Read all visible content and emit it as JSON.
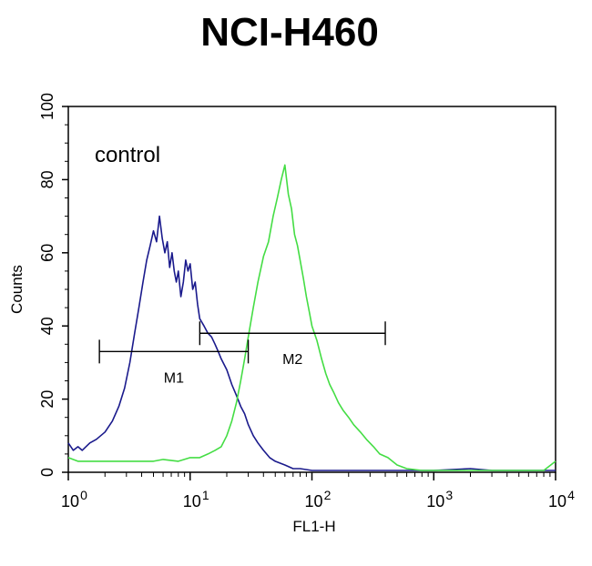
{
  "chart_data": {
    "type": "line",
    "title": "NCI-H460",
    "xlabel": "FL1-H",
    "ylabel": "Counts",
    "x_scale": "log",
    "xlim": [
      1,
      10000
    ],
    "ylim": [
      0,
      100
    ],
    "y_ticks": [
      "0",
      "20",
      "40",
      "60",
      "80",
      "100"
    ],
    "x_ticks": [
      {
        "base": "10",
        "exp": "0"
      },
      {
        "base": "10",
        "exp": "1"
      },
      {
        "base": "10",
        "exp": "2"
      },
      {
        "base": "10",
        "exp": "3"
      },
      {
        "base": "10",
        "exp": "4"
      }
    ],
    "annotation": "control",
    "gates": [
      {
        "label": "M1",
        "x_start": 1.8,
        "x_end": 30,
        "y": 33
      },
      {
        "label": "M2",
        "x_start": 12,
        "x_end": 400,
        "y": 38
      }
    ],
    "series": [
      {
        "color": "#1a1a8c",
        "points": [
          [
            1.0,
            8
          ],
          [
            1.1,
            6
          ],
          [
            1.2,
            7
          ],
          [
            1.3,
            6
          ],
          [
            1.5,
            8
          ],
          [
            1.7,
            9
          ],
          [
            2.0,
            11
          ],
          [
            2.3,
            14
          ],
          [
            2.6,
            18
          ],
          [
            2.9,
            23
          ],
          [
            3.2,
            30
          ],
          [
            3.5,
            38
          ],
          [
            3.8,
            45
          ],
          [
            4.1,
            52
          ],
          [
            4.4,
            58
          ],
          [
            4.7,
            62
          ],
          [
            5.0,
            66
          ],
          [
            5.3,
            63
          ],
          [
            5.6,
            70
          ],
          [
            5.9,
            64
          ],
          [
            6.2,
            60
          ],
          [
            6.5,
            63
          ],
          [
            6.8,
            56
          ],
          [
            7.1,
            60
          ],
          [
            7.4,
            55
          ],
          [
            7.7,
            52
          ],
          [
            8.0,
            55
          ],
          [
            8.4,
            48
          ],
          [
            8.8,
            52
          ],
          [
            9.2,
            58
          ],
          [
            9.6,
            55
          ],
          [
            10,
            57
          ],
          [
            10.5,
            50
          ],
          [
            11,
            52
          ],
          [
            11.5,
            46
          ],
          [
            12,
            42
          ],
          [
            13,
            40
          ],
          [
            14,
            38
          ],
          [
            15,
            37
          ],
          [
            16,
            35
          ],
          [
            17,
            33
          ],
          [
            18,
            31
          ],
          [
            20,
            28
          ],
          [
            22,
            24
          ],
          [
            24,
            21
          ],
          [
            26,
            18
          ],
          [
            28,
            16
          ],
          [
            30,
            13
          ],
          [
            33,
            10
          ],
          [
            36,
            8
          ],
          [
            40,
            6
          ],
          [
            45,
            4
          ],
          [
            50,
            3
          ],
          [
            60,
            2
          ],
          [
            70,
            1
          ],
          [
            80,
            1
          ],
          [
            100,
            0.5
          ],
          [
            150,
            0.5
          ],
          [
            200,
            0.5
          ],
          [
            300,
            0.5
          ],
          [
            500,
            0.5
          ],
          [
            800,
            0.5
          ],
          [
            1000,
            0.5
          ],
          [
            2000,
            1
          ],
          [
            3000,
            0.5
          ],
          [
            5000,
            0.5
          ],
          [
            10000,
            0.5
          ]
        ]
      },
      {
        "color": "#44dd44",
        "points": [
          [
            1.0,
            4
          ],
          [
            1.2,
            3
          ],
          [
            1.5,
            3
          ],
          [
            2.0,
            3
          ],
          [
            3.0,
            3
          ],
          [
            4.0,
            3
          ],
          [
            5.0,
            3
          ],
          [
            6.0,
            3.5
          ],
          [
            8.0,
            3
          ],
          [
            10,
            4
          ],
          [
            12,
            4
          ],
          [
            14,
            5
          ],
          [
            16,
            6
          ],
          [
            18,
            7
          ],
          [
            20,
            10
          ],
          [
            22,
            14
          ],
          [
            24,
            19
          ],
          [
            26,
            25
          ],
          [
            28,
            31
          ],
          [
            30,
            37
          ],
          [
            33,
            45
          ],
          [
            36,
            52
          ],
          [
            40,
            59
          ],
          [
            44,
            63
          ],
          [
            48,
            70
          ],
          [
            52,
            75
          ],
          [
            56,
            80
          ],
          [
            60,
            84
          ],
          [
            64,
            76
          ],
          [
            68,
            72
          ],
          [
            72,
            65
          ],
          [
            76,
            62
          ],
          [
            80,
            58
          ],
          [
            85,
            53
          ],
          [
            90,
            48
          ],
          [
            95,
            44
          ],
          [
            100,
            40
          ],
          [
            110,
            36
          ],
          [
            120,
            31
          ],
          [
            130,
            27
          ],
          [
            140,
            24
          ],
          [
            150,
            22
          ],
          [
            165,
            19
          ],
          [
            180,
            17
          ],
          [
            200,
            15
          ],
          [
            220,
            13
          ],
          [
            250,
            11
          ],
          [
            280,
            9
          ],
          [
            320,
            7
          ],
          [
            360,
            5
          ],
          [
            420,
            4
          ],
          [
            500,
            2
          ],
          [
            600,
            1
          ],
          [
            800,
            0.5
          ],
          [
            1000,
            0.5
          ],
          [
            2000,
            0.5
          ],
          [
            3000,
            0.5
          ],
          [
            5000,
            0.5
          ],
          [
            8000,
            0.5
          ],
          [
            10000,
            3
          ]
        ]
      }
    ]
  }
}
